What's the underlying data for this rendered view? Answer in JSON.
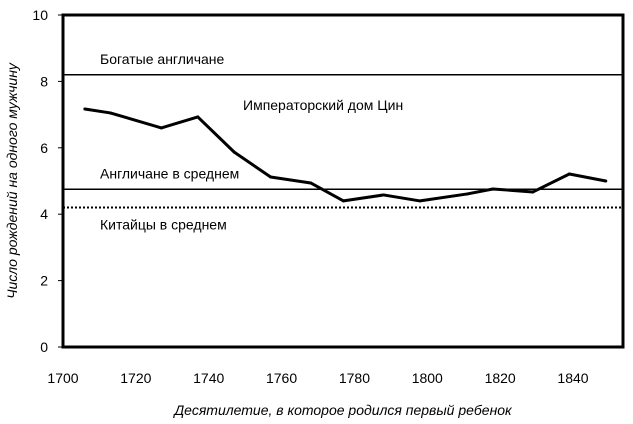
{
  "chart_data": {
    "type": "line",
    "title": "",
    "xlabel": "Десятилетие, в которое родился первый ребенок",
    "ylabel": "Число рождений на одного мужчину",
    "xlim": [
      1700,
      1853
    ],
    "ylim": [
      0,
      10
    ],
    "xticks": [
      1700,
      1720,
      1740,
      1760,
      1780,
      1800,
      1820,
      1840
    ],
    "yticks": [
      0,
      2,
      4,
      6,
      8,
      10
    ],
    "grid": false,
    "series": [
      {
        "name": "Императорский дом Цин",
        "x": [
          1706,
          1713,
          1727,
          1737,
          1747,
          1757,
          1768,
          1777,
          1788,
          1798,
          1811,
          1818,
          1829,
          1839,
          1849
        ],
        "y": [
          7.17,
          7.05,
          6.6,
          6.93,
          5.87,
          5.12,
          4.94,
          4.4,
          4.58,
          4.4,
          4.61,
          4.76,
          4.67,
          5.21,
          5.0
        ],
        "color": "#000000"
      }
    ],
    "reference_lines": [
      {
        "name": "Богатые англичане",
        "y": 8.2,
        "style": "solid"
      },
      {
        "name": "Англичане в среднем",
        "y": 4.75,
        "style": "solid"
      },
      {
        "name": "Китайцы в среднем",
        "y": 4.2,
        "style": "dotted"
      }
    ]
  }
}
